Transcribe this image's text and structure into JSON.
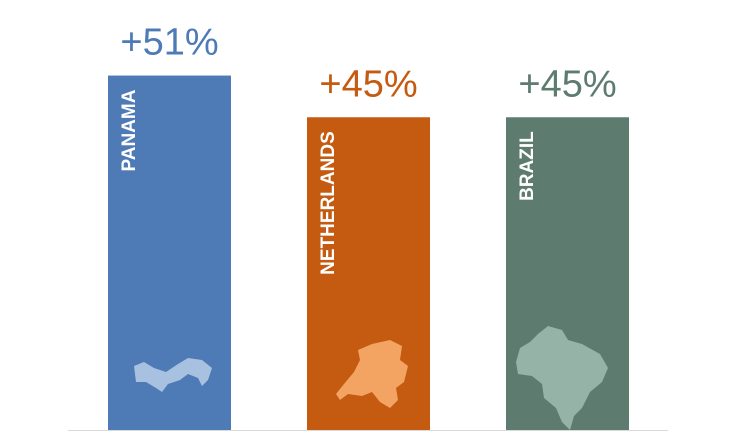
{
  "chart_data": {
    "type": "bar",
    "categories": [
      "PANAMA",
      "NETHERLANDS",
      "BRAZIL"
    ],
    "values": [
      51,
      45,
      45
    ],
    "value_labels": [
      "+51%",
      "+45%",
      "+45%"
    ],
    "colors": [
      "#4e7ab5",
      "#c55a11",
      "#5e7b6f"
    ]
  }
}
